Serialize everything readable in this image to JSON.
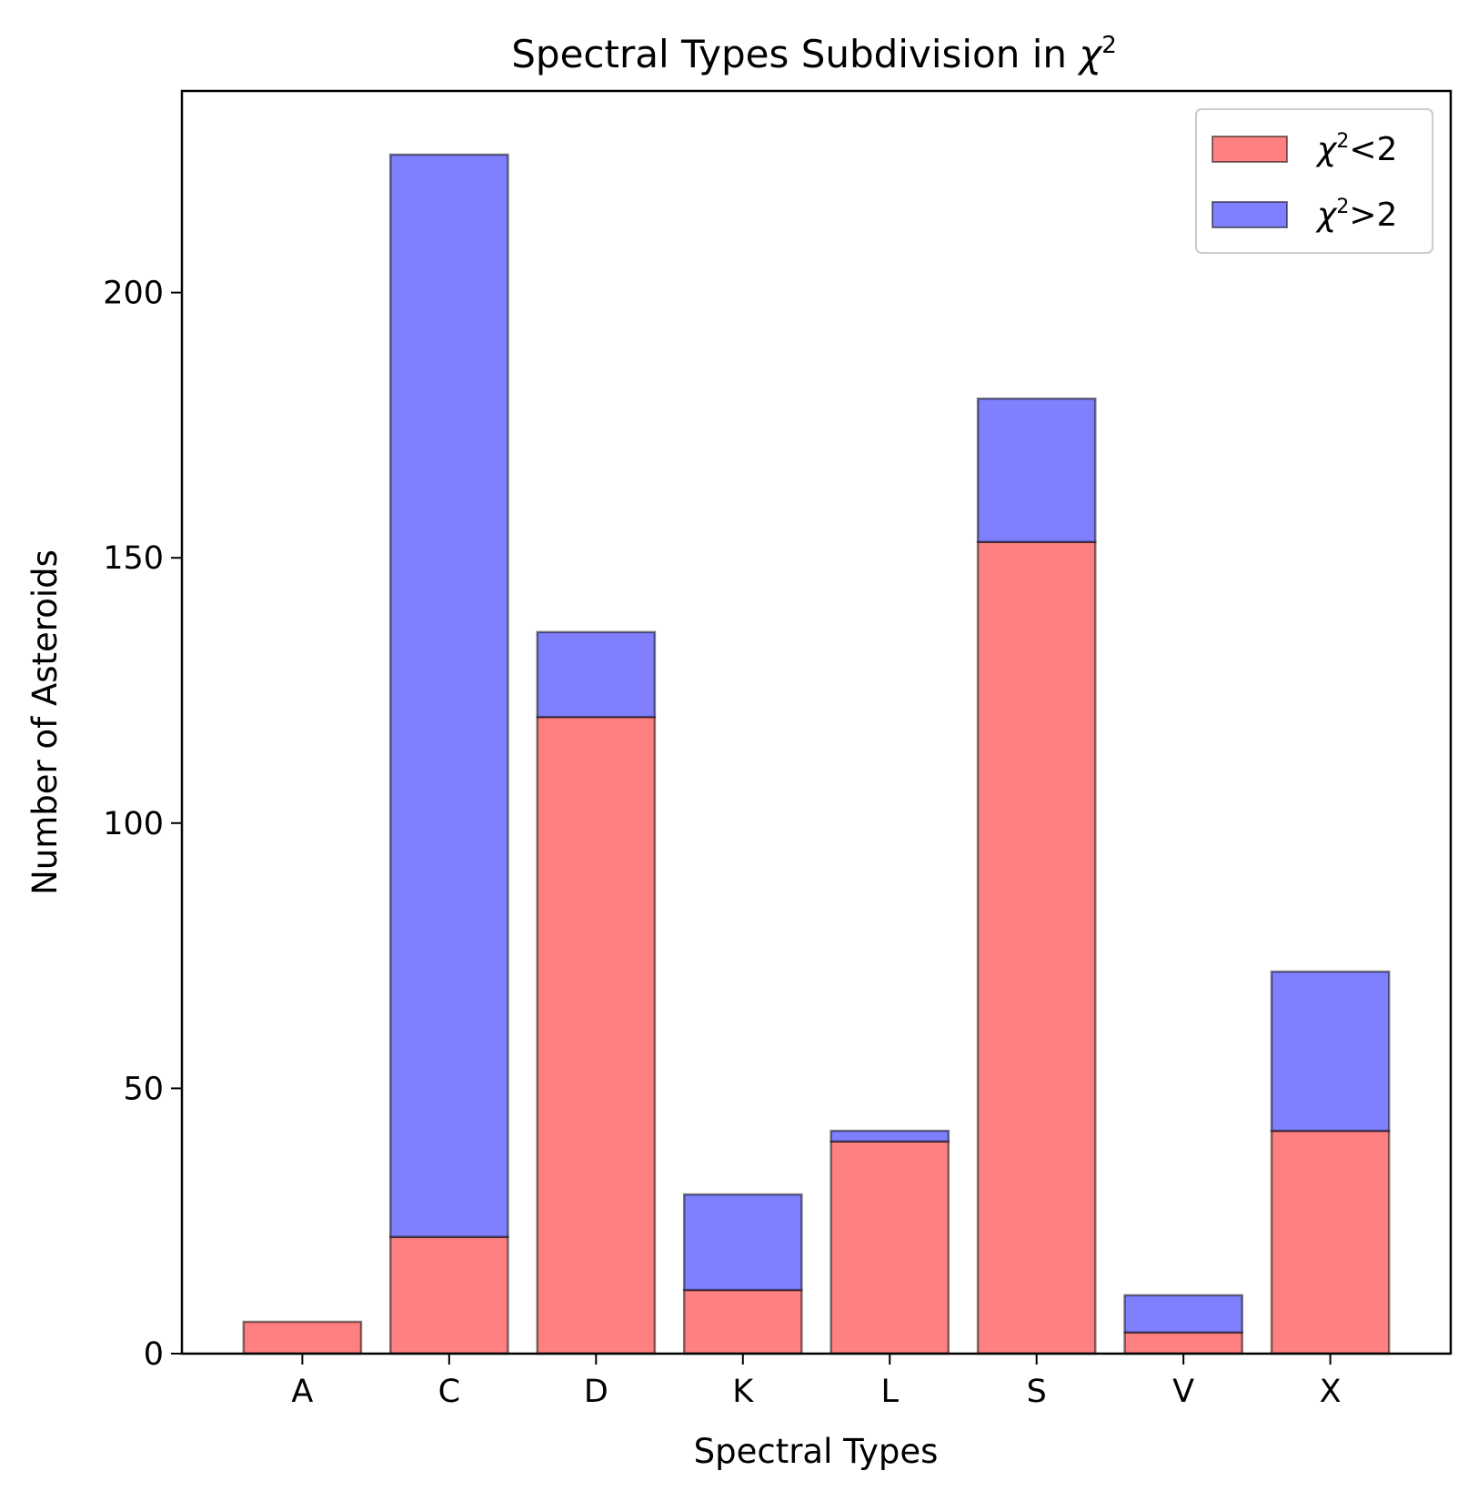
{
  "chart_data": {
    "type": "bar",
    "stacked": true,
    "title": "Spectral Types Subdivision in χ²",
    "title_base": "Spectral Types Subdivision in ",
    "title_symbol": "χ",
    "title_sup": "2",
    "xlabel": "Spectral Types",
    "ylabel": "Number of Asteroids",
    "categories": [
      "A",
      "C",
      "D",
      "K",
      "L",
      "S",
      "V",
      "X"
    ],
    "series": [
      {
        "name": "χ²<2",
        "symbol": "χ",
        "sup": "2",
        "rel": "<2",
        "color": "#ff8080",
        "values": [
          6,
          22,
          120,
          12,
          40,
          153,
          4,
          42
        ]
      },
      {
        "name": "χ²>2",
        "symbol": "χ",
        "sup": "2",
        "rel": ">2",
        "color": "#8080ff",
        "values": [
          0,
          204,
          16,
          18,
          2,
          27,
          7,
          30
        ]
      }
    ],
    "ylim": [
      0,
      238
    ],
    "yticks": [
      0,
      50,
      100,
      150,
      200
    ],
    "grid": false,
    "legend_position": "top-right"
  }
}
